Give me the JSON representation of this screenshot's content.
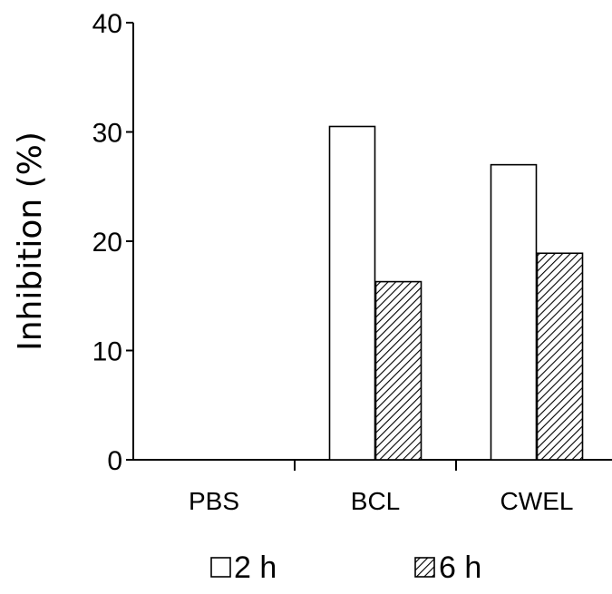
{
  "chart_data": {
    "type": "bar",
    "title": "",
    "xlabel": "",
    "ylabel": "Inhibition  (%)",
    "ylim": [
      0,
      40
    ],
    "yticks": [
      0,
      10,
      20,
      30,
      40
    ],
    "categories": [
      "PBS",
      "BCL",
      "CWEL"
    ],
    "series": [
      {
        "name": "2 h",
        "values": [
          0,
          30.5,
          27.0
        ],
        "fill": "#ffffff",
        "pattern": "none"
      },
      {
        "name": "6 h",
        "values": [
          0,
          16.3,
          18.9
        ],
        "fill": "#ffffff",
        "pattern": "diagonal-hatch"
      }
    ],
    "grid": false,
    "legend_position": "bottom",
    "colors": {
      "stroke": "#000000",
      "hatch": "#000000",
      "background": "#ffffff"
    }
  }
}
